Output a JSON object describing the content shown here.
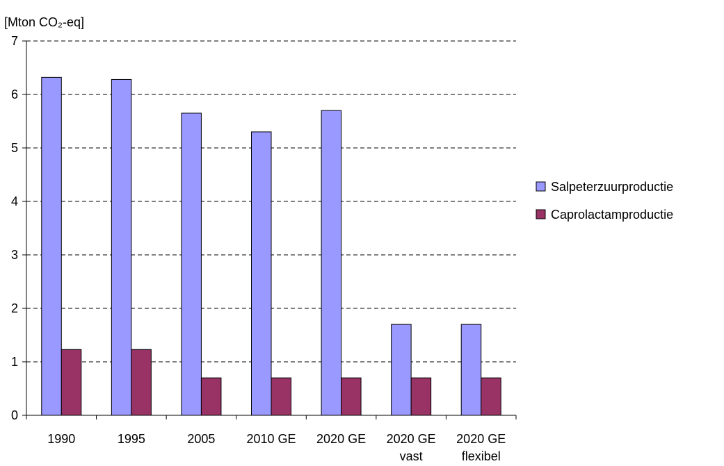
{
  "chart_data": {
    "type": "bar",
    "y_label": "[Mton CO₂-eq]",
    "categories": [
      "1990",
      "1995",
      "2005",
      "2010 GE",
      "2020 GE",
      "2020 GE\nvast",
      "2020 GE\nflexibel"
    ],
    "series": [
      {
        "name": "Salpeterzuurproductie",
        "color": "#9999ff",
        "values": [
          6.32,
          6.28,
          5.65,
          5.3,
          5.7,
          1.7,
          1.7
        ]
      },
      {
        "name": "Caprolactamproductie",
        "color": "#993366",
        "values": [
          1.23,
          1.23,
          0.7,
          0.7,
          0.7,
          0.7,
          0.7
        ]
      }
    ],
    "ylim": [
      0,
      7
    ],
    "yticks": [
      0,
      1,
      2,
      3,
      4,
      5,
      6,
      7
    ],
    "grid": true,
    "legend": "right"
  }
}
